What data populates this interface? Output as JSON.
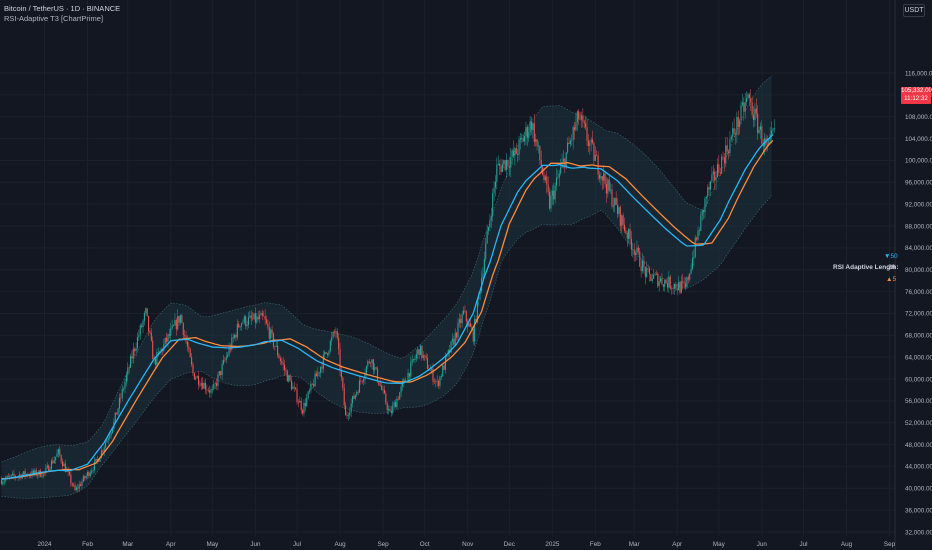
{
  "header": {
    "symbol": "Bitcoin / TetherUS · 1D · BINANCE",
    "indicator": "RSI-Adaptive T3 [ChartPrime]"
  },
  "axis": {
    "currency": "USDT",
    "price_ticks": [
      "116,000.00",
      "112,000.00",
      "108,000.00",
      "104,000.00",
      "100,000.00",
      "96,000.00",
      "92,000.00",
      "88,000.00",
      "84,000.00",
      "80,000.00",
      "76,000.00",
      "72,000.00",
      "68,000.00",
      "64,000.00",
      "60,000.00",
      "56,000.00",
      "52,000.00",
      "48,000.00",
      "44,000.00",
      "40,000.00",
      "36,000.00",
      "32,000.00"
    ],
    "time_ticks": [
      "2024",
      "Feb",
      "Mar",
      "Apr",
      "May",
      "Jun",
      "Jul",
      "Aug",
      "Sep",
      "Oct",
      "Nov",
      "Dec",
      "2025",
      "Feb",
      "Mar",
      "Apr",
      "May",
      "Jun",
      "Jul",
      "Aug",
      "Sep"
    ]
  },
  "last_price": {
    "price": "105,332.00",
    "countdown": "11:12:32"
  },
  "rsi_panel": {
    "max_value": "50",
    "label": "RSI Adaptive Length:",
    "current_value": "26",
    "min_value": "5"
  },
  "colors": {
    "background": "#131722",
    "up": "#26a69a",
    "down": "#ef5350",
    "t3_fast": "#29b6f6",
    "t3_slow": "#ff8a3d",
    "band": "#1e3a44",
    "price_tag": "#f23645"
  },
  "chart_data": {
    "type": "candlestick",
    "y_range": [
      32000,
      116000
    ],
    "x_range": [
      "2023-12-01",
      "2025-09-01"
    ],
    "close_path": [
      {
        "date": "2023-12-01",
        "price": 41500
      },
      {
        "date": "2023-12-15",
        "price": 42500
      },
      {
        "date": "2024-01-01",
        "price": 42800
      },
      {
        "date": "2024-01-11",
        "price": 46500
      },
      {
        "date": "2024-01-23",
        "price": 39500
      },
      {
        "date": "2024-02-08",
        "price": 45000
      },
      {
        "date": "2024-02-20",
        "price": 52000
      },
      {
        "date": "2024-03-05",
        "price": 65000
      },
      {
        "date": "2024-03-14",
        "price": 72000
      },
      {
        "date": "2024-03-20",
        "price": 63000
      },
      {
        "date": "2024-04-08",
        "price": 71500
      },
      {
        "date": "2024-04-17",
        "price": 61000
      },
      {
        "date": "2024-05-01",
        "price": 57500
      },
      {
        "date": "2024-05-21",
        "price": 70500
      },
      {
        "date": "2024-06-07",
        "price": 71000
      },
      {
        "date": "2024-06-24",
        "price": 60500
      },
      {
        "date": "2024-07-05",
        "price": 54500
      },
      {
        "date": "2024-07-29",
        "price": 69000
      },
      {
        "date": "2024-08-05",
        "price": 53000
      },
      {
        "date": "2024-08-23",
        "price": 64000
      },
      {
        "date": "2024-09-06",
        "price": 53500
      },
      {
        "date": "2024-09-27",
        "price": 65500
      },
      {
        "date": "2024-10-10",
        "price": 59000
      },
      {
        "date": "2024-10-29",
        "price": 72000
      },
      {
        "date": "2024-11-05",
        "price": 68000
      },
      {
        "date": "2024-11-22",
        "price": 98500
      },
      {
        "date": "2024-12-05",
        "price": 101000
      },
      {
        "date": "2024-12-17",
        "price": 107000
      },
      {
        "date": "2024-12-30",
        "price": 92000
      },
      {
        "date": "2025-01-20",
        "price": 108000
      },
      {
        "date": "2025-02-03",
        "price": 99000
      },
      {
        "date": "2025-02-25",
        "price": 86000
      },
      {
        "date": "2025-03-10",
        "price": 79000
      },
      {
        "date": "2025-04-07",
        "price": 76500
      },
      {
        "date": "2025-04-22",
        "price": 93500
      },
      {
        "date": "2025-05-10",
        "price": 104000
      },
      {
        "date": "2025-05-22",
        "price": 111500
      },
      {
        "date": "2025-06-05",
        "price": 101500
      },
      {
        "date": "2025-06-10",
        "price": 105332
      }
    ],
    "t3_path": [
      {
        "date": "2023-12-01",
        "price": 41500
      },
      {
        "date": "2024-01-10",
        "price": 43500
      },
      {
        "date": "2024-02-01",
        "price": 43000
      },
      {
        "date": "2024-03-01",
        "price": 56000
      },
      {
        "date": "2024-04-01",
        "price": 68500
      },
      {
        "date": "2024-05-01",
        "price": 65500
      },
      {
        "date": "2024-06-01",
        "price": 66000
      },
      {
        "date": "2024-06-20",
        "price": 68000
      },
      {
        "date": "2024-07-15",
        "price": 63000
      },
      {
        "date": "2024-08-15",
        "price": 60500
      },
      {
        "date": "2024-09-15",
        "price": 58500
      },
      {
        "date": "2024-10-15",
        "price": 63500
      },
      {
        "date": "2024-11-05",
        "price": 70000
      },
      {
        "date": "2024-11-25",
        "price": 90000
      },
      {
        "date": "2024-12-25",
        "price": 100500
      },
      {
        "date": "2025-01-15",
        "price": 98000
      },
      {
        "date": "2025-02-05",
        "price": 99500
      },
      {
        "date": "2025-03-01",
        "price": 93000
      },
      {
        "date": "2025-04-05",
        "price": 84500
      },
      {
        "date": "2025-04-20",
        "price": 82500
      },
      {
        "date": "2025-05-20",
        "price": 99000
      },
      {
        "date": "2025-06-10",
        "price": 106000
      }
    ]
  }
}
